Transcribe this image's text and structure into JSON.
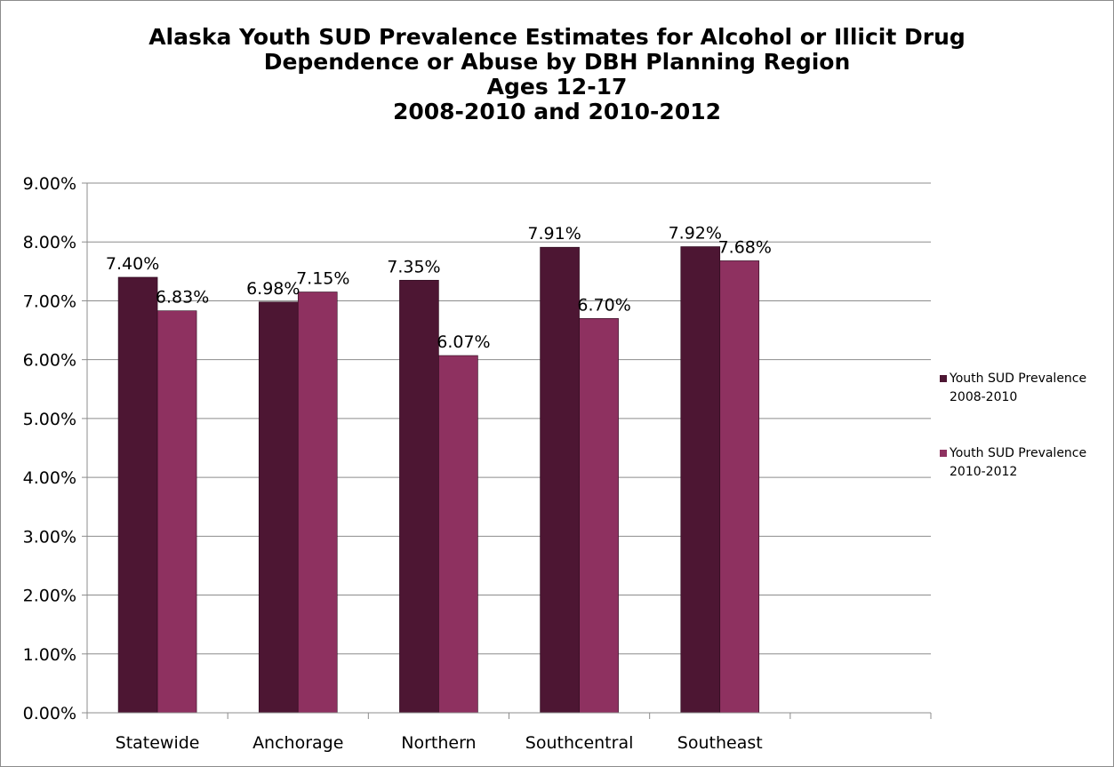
{
  "chart_data": {
    "type": "bar",
    "title_lines": [
      "Alaska Youth SUD Prevalence Estimates for Alcohol or Illicit Drug",
      "Dependence or Abuse by DBH Planning Region",
      "Ages 12-17",
      "2008-2010 and 2010-2012"
    ],
    "categories": [
      "Statewide",
      "Anchorage",
      "Northern",
      "Southcentral",
      "Southeast"
    ],
    "series": [
      {
        "name_lines": [
          "Youth SUD Prevalence",
          "2008-2010"
        ],
        "values": [
          7.4,
          6.98,
          7.35,
          7.91,
          7.92
        ],
        "labels": [
          "7.40%",
          "6.98%",
          "7.35%",
          "7.91%",
          "7.92%"
        ],
        "color": "#4d1633"
      },
      {
        "name_lines": [
          "Youth SUD Prevalence",
          "2010-2012"
        ],
        "values": [
          6.83,
          7.15,
          6.07,
          6.7,
          7.68
        ],
        "labels": [
          "6.83%",
          "7.15%",
          "6.07%",
          "6.70%",
          "7.68%"
        ],
        "color": "#8e3160"
      }
    ],
    "y_ticks": [
      "0.00%",
      "1.00%",
      "2.00%",
      "3.00%",
      "4.00%",
      "5.00%",
      "6.00%",
      "7.00%",
      "8.00%",
      "9.00%"
    ],
    "ylim": [
      0,
      9
    ],
    "y_step": 1,
    "category_slots": 6,
    "grid": true,
    "legend_position": "right",
    "colors": {
      "gridline": "#8c8c8c",
      "axis": "#8c8c8c"
    }
  }
}
